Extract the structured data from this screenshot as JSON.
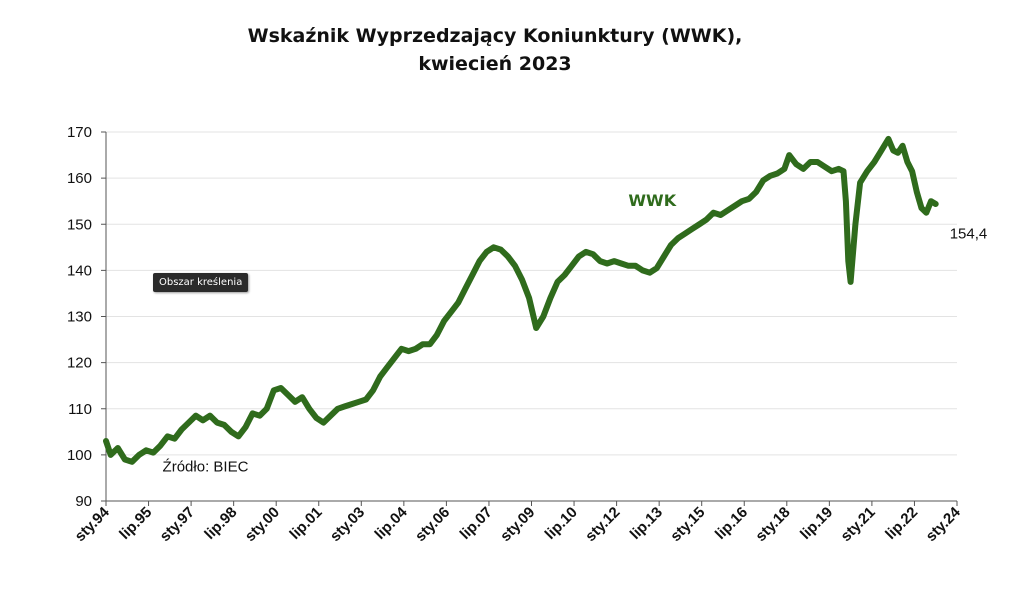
{
  "tooltip": {
    "text": "Obszar kreślenia"
  },
  "chart_data": {
    "type": "line",
    "title": "Wskaźnik Wyprzedzający Koniunktury (WWK),",
    "subtitle": "kwiecień 2023",
    "xlabel": "",
    "ylabel": "",
    "ylim": [
      90,
      170
    ],
    "yticks": [
      90,
      100,
      110,
      120,
      130,
      140,
      150,
      160,
      170
    ],
    "xlim": [
      "1994-01",
      "2024-01"
    ],
    "xtick_labels": [
      "sty.94",
      "lip.95",
      "sty.97",
      "lip.98",
      "sty.00",
      "lip.01",
      "sty.03",
      "lip.04",
      "sty.06",
      "lip.07",
      "sty.09",
      "lip.10",
      "sty.12",
      "lip.13",
      "sty.15",
      "lip.16",
      "sty.18",
      "lip.19",
      "sty.21",
      "lip.22",
      "sty.24"
    ],
    "grid": "horizontal",
    "series": [
      {
        "name": "WWK",
        "color": "#2f6b1c",
        "points": [
          [
            "1994-01",
            103
          ],
          [
            "1994-03",
            100
          ],
          [
            "1994-06",
            101.5
          ],
          [
            "1994-09",
            99
          ],
          [
            "1994-12",
            98.5
          ],
          [
            "1995-03",
            100
          ],
          [
            "1995-06",
            101
          ],
          [
            "1995-09",
            100.5
          ],
          [
            "1995-12",
            102
          ],
          [
            "1996-03",
            104
          ],
          [
            "1996-06",
            103.5
          ],
          [
            "1996-09",
            105.5
          ],
          [
            "1996-12",
            107
          ],
          [
            "1997-03",
            108.5
          ],
          [
            "1997-06",
            107.5
          ],
          [
            "1997-09",
            108.5
          ],
          [
            "1997-12",
            107
          ],
          [
            "1998-03",
            106.5
          ],
          [
            "1998-06",
            105
          ],
          [
            "1998-09",
            104
          ],
          [
            "1998-12",
            106
          ],
          [
            "1999-03",
            109
          ],
          [
            "1999-06",
            108.5
          ],
          [
            "1999-09",
            110
          ],
          [
            "1999-12",
            114
          ],
          [
            "2000-03",
            114.5
          ],
          [
            "2000-06",
            113
          ],
          [
            "2000-09",
            111.5
          ],
          [
            "2000-12",
            112.5
          ],
          [
            "2001-03",
            110
          ],
          [
            "2001-06",
            108
          ],
          [
            "2001-09",
            107
          ],
          [
            "2001-12",
            108.5
          ],
          [
            "2002-03",
            110
          ],
          [
            "2002-06",
            110.5
          ],
          [
            "2002-09",
            111
          ],
          [
            "2002-12",
            111.5
          ],
          [
            "2003-03",
            112
          ],
          [
            "2003-06",
            114
          ],
          [
            "2003-09",
            117
          ],
          [
            "2003-12",
            119
          ],
          [
            "2004-03",
            121
          ],
          [
            "2004-06",
            123
          ],
          [
            "2004-09",
            122.5
          ],
          [
            "2004-12",
            123
          ],
          [
            "2005-03",
            124
          ],
          [
            "2005-06",
            124
          ],
          [
            "2005-09",
            126
          ],
          [
            "2005-12",
            129
          ],
          [
            "2006-03",
            131
          ],
          [
            "2006-06",
            133
          ],
          [
            "2006-09",
            136
          ],
          [
            "2006-12",
            139
          ],
          [
            "2007-03",
            142
          ],
          [
            "2007-06",
            144
          ],
          [
            "2007-09",
            145
          ],
          [
            "2007-12",
            144.5
          ],
          [
            "2008-03",
            143
          ],
          [
            "2008-06",
            141
          ],
          [
            "2008-09",
            138
          ],
          [
            "2008-12",
            134
          ],
          [
            "2009-03",
            127.5
          ],
          [
            "2009-06",
            130
          ],
          [
            "2009-09",
            134
          ],
          [
            "2009-12",
            137.5
          ],
          [
            "2010-03",
            139
          ],
          [
            "2010-06",
            141
          ],
          [
            "2010-09",
            143
          ],
          [
            "2010-12",
            144
          ],
          [
            "2011-03",
            143.5
          ],
          [
            "2011-06",
            142
          ],
          [
            "2011-09",
            141.5
          ],
          [
            "2011-12",
            142
          ],
          [
            "2012-03",
            141.5
          ],
          [
            "2012-06",
            141
          ],
          [
            "2012-09",
            141
          ],
          [
            "2012-12",
            140
          ],
          [
            "2013-03",
            139.5
          ],
          [
            "2013-06",
            140.5
          ],
          [
            "2013-09",
            143
          ],
          [
            "2013-12",
            145.5
          ],
          [
            "2014-03",
            147
          ],
          [
            "2014-06",
            148
          ],
          [
            "2014-09",
            149
          ],
          [
            "2014-12",
            150
          ],
          [
            "2015-03",
            151
          ],
          [
            "2015-06",
            152.5
          ],
          [
            "2015-09",
            152
          ],
          [
            "2015-12",
            153
          ],
          [
            "2016-03",
            154
          ],
          [
            "2016-06",
            155
          ],
          [
            "2016-09",
            155.5
          ],
          [
            "2016-12",
            157
          ],
          [
            "2017-03",
            159.5
          ],
          [
            "2017-06",
            160.5
          ],
          [
            "2017-09",
            161
          ],
          [
            "2017-12",
            162
          ],
          [
            "2018-02",
            165
          ],
          [
            "2018-05",
            163
          ],
          [
            "2018-08",
            162
          ],
          [
            "2018-11",
            163.5
          ],
          [
            "2019-02",
            163.5
          ],
          [
            "2019-05",
            162.5
          ],
          [
            "2019-08",
            161.5
          ],
          [
            "2019-11",
            162
          ],
          [
            "2020-01",
            161.5
          ],
          [
            "2020-02",
            155
          ],
          [
            "2020-03",
            142
          ],
          [
            "2020-04",
            137.5
          ],
          [
            "2020-06",
            150
          ],
          [
            "2020-08",
            159
          ],
          [
            "2020-11",
            161.5
          ],
          [
            "2021-02",
            163.5
          ],
          [
            "2021-05",
            166
          ],
          [
            "2021-08",
            168.5
          ],
          [
            "2021-10",
            166
          ],
          [
            "2021-12",
            165.5
          ],
          [
            "2022-02",
            167
          ],
          [
            "2022-04",
            163.5
          ],
          [
            "2022-06",
            161.5
          ],
          [
            "2022-08",
            157
          ],
          [
            "2022-10",
            153.5
          ],
          [
            "2022-12",
            152.5
          ],
          [
            "2023-02",
            155
          ],
          [
            "2023-04",
            154.4
          ]
        ]
      }
    ],
    "annotations": [
      {
        "text": "WWK",
        "at": [
          "2012-06",
          154
        ]
      },
      {
        "text": "154,4",
        "at": [
          "2023-04",
          148
        ]
      },
      {
        "text": "Źródło: BIEC",
        "at": [
          "1996-06",
          97.5
        ]
      }
    ]
  }
}
